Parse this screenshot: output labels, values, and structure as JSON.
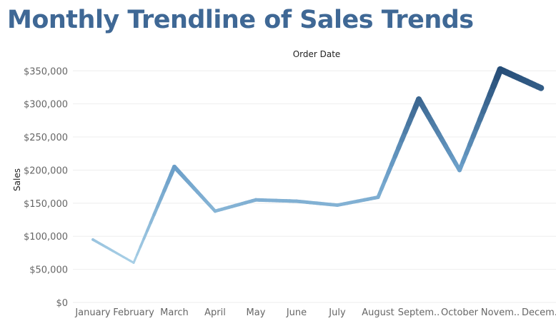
{
  "title": "Monthly Trendline of Sales Trends",
  "chart_data": {
    "type": "line",
    "title": "Monthly Trendline of Sales Trends",
    "xlabel": "Order Date",
    "ylabel": "Sales",
    "categories": [
      "January",
      "February",
      "March",
      "April",
      "May",
      "June",
      "July",
      "August",
      "September",
      "October",
      "November",
      "December"
    ],
    "category_tick_labels": [
      "January",
      "February",
      "March",
      "April",
      "May",
      "June",
      "July",
      "August",
      "Septem..",
      "October",
      "Novem..",
      "Decem.."
    ],
    "series": [
      {
        "values": [
          95000,
          60000,
          205000,
          138000,
          155000,
          153000,
          147000,
          159000,
          307000,
          200000,
          352000,
          324000
        ]
      }
    ],
    "ylim": [
      0,
      360000
    ],
    "y_ticks": [
      0,
      50000,
      100000,
      150000,
      200000,
      250000,
      300000,
      350000
    ],
    "y_tick_labels": [
      "$0",
      "$50,000",
      "$100,000",
      "$150,000",
      "$200,000",
      "$250,000",
      "$300,000",
      "$350,000"
    ],
    "grid": true,
    "colors": {
      "low": "#a8cfe6",
      "mid": "#6a9ec8",
      "high": "#264d77",
      "title": "#3f6895"
    }
  }
}
